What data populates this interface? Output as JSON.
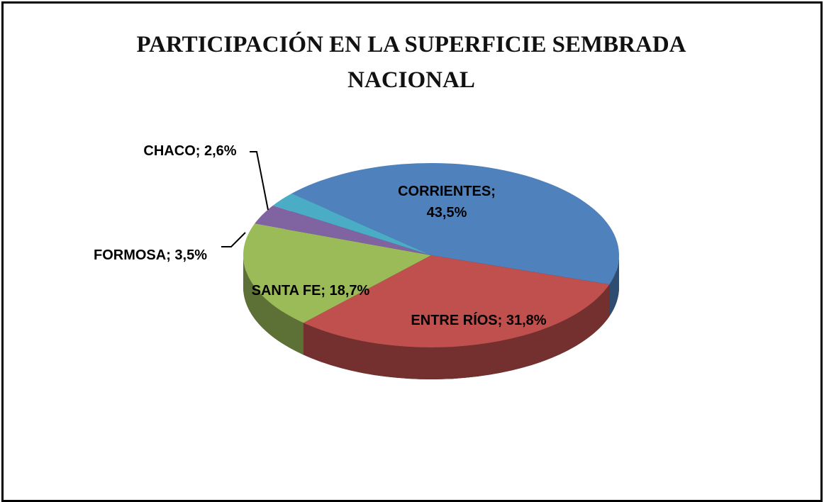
{
  "chart_data": {
    "type": "pie",
    "title": "PARTICIPACIÓN EN LA SUPERFICIE SEMBRADA NACIONAL",
    "categories": [
      "CORRIENTES",
      "ENTRE RÍOS",
      "SANTA FE",
      "FORMOSA",
      "CHACO"
    ],
    "values": [
      43.5,
      31.8,
      18.7,
      3.5,
      2.6
    ],
    "value_labels": [
      "CORRIENTES; 43,5%",
      "ENTRE RÍOS; 31,8%",
      "SANTA FE; 18,7%",
      "FORMOSA; 3,5%",
      "CHACO; 2,6%"
    ],
    "colors": [
      "#4f81bd",
      "#c0504d",
      "#9bbb59",
      "#8064a2",
      "#4bacc6"
    ]
  }
}
